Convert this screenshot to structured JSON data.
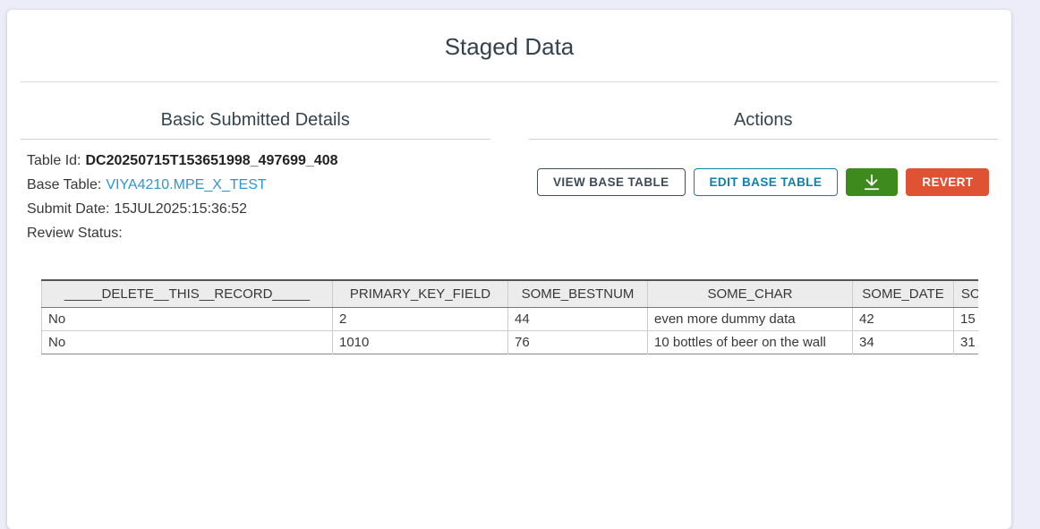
{
  "page": {
    "title": "Staged Data"
  },
  "details": {
    "heading": "Basic Submitted Details",
    "fields": [
      {
        "label": "Table Id:",
        "value": "DC20250715T153651998_497699_408",
        "style": "bold"
      },
      {
        "label": "Base Table:",
        "value": "VIYA4210.MPE_X_TEST",
        "style": "link"
      },
      {
        "label": "Submit Date:",
        "value": "15JUL2025:15:36:52",
        "style": "plain"
      },
      {
        "label": "Review Status:",
        "value": "",
        "style": "plain"
      }
    ]
  },
  "actions": {
    "heading": "Actions",
    "buttons": [
      {
        "label": "VIEW BASE TABLE",
        "kind": "outline-dark"
      },
      {
        "label": "EDIT BASE TABLE",
        "kind": "outline-blue"
      },
      {
        "label": "",
        "icon": "download-icon",
        "kind": "solid-green"
      },
      {
        "label": "REVERT",
        "kind": "solid-red"
      }
    ]
  },
  "staged_table": {
    "columns": [
      "_____DELETE__THIS__RECORD_____",
      "PRIMARY_KEY_FIELD",
      "SOME_BESTNUM",
      "SOME_CHAR",
      "SOME_DATE",
      "SOME_DATETIME"
    ],
    "rows": [
      [
        "No",
        "2",
        "44",
        "even more dummy data",
        "42",
        "15"
      ],
      [
        "No",
        "1010",
        "76",
        "10 bottles of beer on the wall",
        "34",
        "31"
      ]
    ]
  },
  "colors": {
    "page_background": "#ecedf8",
    "card_background": "#ffffff",
    "heading_text": "#32424e",
    "link_blue": "#2e95d3",
    "button_blue": "#0d80ae",
    "button_green": "#3e8a1d",
    "button_red": "#df5233",
    "table_header_bg": "#ececec"
  }
}
